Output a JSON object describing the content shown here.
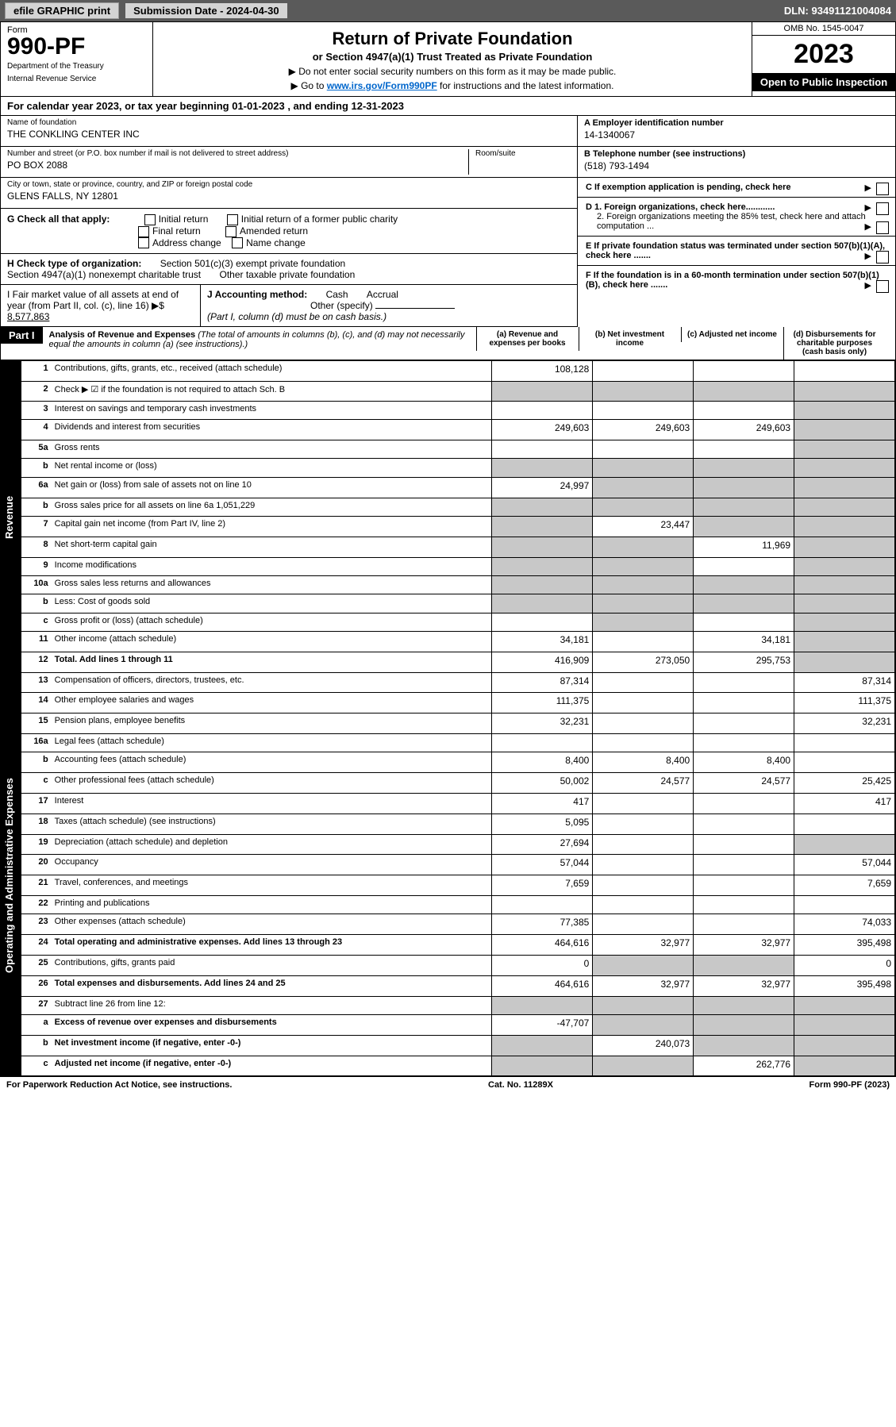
{
  "topbar": {
    "efile_label": "efile GRAPHIC print",
    "submission": "Submission Date - 2024-04-30",
    "dln": "DLN: 93491121004084"
  },
  "header": {
    "form_label": "Form",
    "form_number": "990-PF",
    "dept1": "Department of the Treasury",
    "dept2": "Internal Revenue Service",
    "title": "Return of Private Foundation",
    "subtitle": "or Section 4947(a)(1) Trust Treated as Private Foundation",
    "note1": "▶ Do not enter social security numbers on this form as it may be made public.",
    "note2_pre": "▶ Go to ",
    "note2_link": "www.irs.gov/Form990PF",
    "note2_post": " for instructions and the latest information.",
    "omb": "OMB No. 1545-0047",
    "year": "2023",
    "inspection": "Open to Public Inspection"
  },
  "calyear": "For calendar year 2023, or tax year beginning 01-01-2023                              , and ending 12-31-2023",
  "foundation": {
    "name_label": "Name of foundation",
    "name": "THE CONKLING CENTER INC",
    "addr_label": "Number and street (or P.O. box number if mail is not delivered to street address)",
    "addr": "PO BOX 2088",
    "room_label": "Room/suite",
    "city_label": "City or town, state or province, country, and ZIP or foreign postal code",
    "city": "GLENS FALLS, NY  12801",
    "ein_label": "A Employer identification number",
    "ein": "14-1340067",
    "phone_label": "B Telephone number (see instructions)",
    "phone": "(518) 793-1494",
    "c": "C If exemption application is pending, check here",
    "d1": "D 1. Foreign organizations, check here............",
    "d2": "2. Foreign organizations meeting the 85% test, check here and attach computation ...",
    "e": "E If private foundation status was terminated under section 507(b)(1)(A), check here .......",
    "f": "F If the foundation is in a 60-month termination under section 507(b)(1)(B), check here .......",
    "g_label": "G Check all that apply:",
    "g_opts": [
      "Initial return",
      "Initial return of a former public charity",
      "Final return",
      "Amended return",
      "Address change",
      "Name change"
    ],
    "h_label": "H Check type of organization:",
    "h1": "Section 501(c)(3) exempt private foundation",
    "h2": "Section 4947(a)(1) nonexempt charitable trust",
    "h3": "Other taxable private foundation",
    "i_label": "I Fair market value of all assets at end of year (from Part II, col. (c), line 16) ▶$",
    "i_val": "8,577,863",
    "j_label": "J Accounting method:",
    "j_cash": "Cash",
    "j_accrual": "Accrual",
    "j_other": "Other (specify)",
    "j_note": "(Part I, column (d) must be on cash basis.)"
  },
  "part1": {
    "label": "Part I",
    "title": "Analysis of Revenue and Expenses",
    "title_note": "(The total of amounts in columns (b), (c), and (d) may not necessarily equal the amounts in column (a) (see instructions).)",
    "col_a": "(a) Revenue and expenses per books",
    "col_b": "(b) Net investment income",
    "col_c": "(c) Adjusted net income",
    "col_d": "(d) Disbursements for charitable purposes (cash basis only)"
  },
  "sidelabels": {
    "revenue": "Revenue",
    "expenses": "Operating and Administrative Expenses"
  },
  "rows": [
    {
      "ln": "1",
      "desc": "Contributions, gifts, grants, etc., received (attach schedule)",
      "a": "108,128",
      "b": "",
      "c": "",
      "d": ""
    },
    {
      "ln": "2",
      "desc": "Check ▶ ☑ if the foundation is not required to attach Sch. B",
      "a": "grey",
      "b": "grey",
      "c": "grey",
      "d": "grey"
    },
    {
      "ln": "3",
      "desc": "Interest on savings and temporary cash investments",
      "a": "",
      "b": "",
      "c": "",
      "d": "grey"
    },
    {
      "ln": "4",
      "desc": "Dividends and interest from securities",
      "a": "249,603",
      "b": "249,603",
      "c": "249,603",
      "d": "grey"
    },
    {
      "ln": "5a",
      "desc": "Gross rents",
      "a": "",
      "b": "",
      "c": "",
      "d": "grey"
    },
    {
      "ln": "b",
      "desc": "Net rental income or (loss)",
      "a": "grey",
      "b": "grey",
      "c": "grey",
      "d": "grey"
    },
    {
      "ln": "6a",
      "desc": "Net gain or (loss) from sale of assets not on line 10",
      "a": "24,997",
      "b": "grey",
      "c": "grey",
      "d": "grey"
    },
    {
      "ln": "b",
      "desc": "Gross sales price for all assets on line 6a     1,051,229",
      "a": "grey",
      "b": "grey",
      "c": "grey",
      "d": "grey"
    },
    {
      "ln": "7",
      "desc": "Capital gain net income (from Part IV, line 2)",
      "a": "grey",
      "b": "23,447",
      "c": "grey",
      "d": "grey"
    },
    {
      "ln": "8",
      "desc": "Net short-term capital gain",
      "a": "grey",
      "b": "grey",
      "c": "11,969",
      "d": "grey"
    },
    {
      "ln": "9",
      "desc": "Income modifications",
      "a": "grey",
      "b": "grey",
      "c": "",
      "d": "grey"
    },
    {
      "ln": "10a",
      "desc": "Gross sales less returns and allowances",
      "a": "grey",
      "b": "grey",
      "c": "grey",
      "d": "grey"
    },
    {
      "ln": "b",
      "desc": "Less: Cost of goods sold",
      "a": "grey",
      "b": "grey",
      "c": "grey",
      "d": "grey"
    },
    {
      "ln": "c",
      "desc": "Gross profit or (loss) (attach schedule)",
      "a": "",
      "b": "grey",
      "c": "",
      "d": "grey"
    },
    {
      "ln": "11",
      "desc": "Other income (attach schedule)",
      "a": "34,181",
      "b": "",
      "c": "34,181",
      "d": "grey"
    },
    {
      "ln": "12",
      "desc": "Total. Add lines 1 through 11",
      "bold": true,
      "a": "416,909",
      "b": "273,050",
      "c": "295,753",
      "d": "grey"
    },
    {
      "ln": "13",
      "desc": "Compensation of officers, directors, trustees, etc.",
      "a": "87,314",
      "b": "",
      "c": "",
      "d": "87,314"
    },
    {
      "ln": "14",
      "desc": "Other employee salaries and wages",
      "a": "111,375",
      "b": "",
      "c": "",
      "d": "111,375"
    },
    {
      "ln": "15",
      "desc": "Pension plans, employee benefits",
      "a": "32,231",
      "b": "",
      "c": "",
      "d": "32,231"
    },
    {
      "ln": "16a",
      "desc": "Legal fees (attach schedule)",
      "a": "",
      "b": "",
      "c": "",
      "d": ""
    },
    {
      "ln": "b",
      "desc": "Accounting fees (attach schedule)",
      "a": "8,400",
      "b": "8,400",
      "c": "8,400",
      "d": ""
    },
    {
      "ln": "c",
      "desc": "Other professional fees (attach schedule)",
      "a": "50,002",
      "b": "24,577",
      "c": "24,577",
      "d": "25,425"
    },
    {
      "ln": "17",
      "desc": "Interest",
      "a": "417",
      "b": "",
      "c": "",
      "d": "417"
    },
    {
      "ln": "18",
      "desc": "Taxes (attach schedule) (see instructions)",
      "a": "5,095",
      "b": "",
      "c": "",
      "d": ""
    },
    {
      "ln": "19",
      "desc": "Depreciation (attach schedule) and depletion",
      "a": "27,694",
      "b": "",
      "c": "",
      "d": "grey"
    },
    {
      "ln": "20",
      "desc": "Occupancy",
      "a": "57,044",
      "b": "",
      "c": "",
      "d": "57,044"
    },
    {
      "ln": "21",
      "desc": "Travel, conferences, and meetings",
      "a": "7,659",
      "b": "",
      "c": "",
      "d": "7,659"
    },
    {
      "ln": "22",
      "desc": "Printing and publications",
      "a": "",
      "b": "",
      "c": "",
      "d": ""
    },
    {
      "ln": "23",
      "desc": "Other expenses (attach schedule)",
      "a": "77,385",
      "b": "",
      "c": "",
      "d": "74,033"
    },
    {
      "ln": "24",
      "desc": "Total operating and administrative expenses. Add lines 13 through 23",
      "bold": true,
      "a": "464,616",
      "b": "32,977",
      "c": "32,977",
      "d": "395,498"
    },
    {
      "ln": "25",
      "desc": "Contributions, gifts, grants paid",
      "a": "0",
      "b": "grey",
      "c": "grey",
      "d": "0"
    },
    {
      "ln": "26",
      "desc": "Total expenses and disbursements. Add lines 24 and 25",
      "bold": true,
      "a": "464,616",
      "b": "32,977",
      "c": "32,977",
      "d": "395,498"
    },
    {
      "ln": "27",
      "desc": "Subtract line 26 from line 12:",
      "a": "grey",
      "b": "grey",
      "c": "grey",
      "d": "grey"
    },
    {
      "ln": "a",
      "desc": "Excess of revenue over expenses and disbursements",
      "bold": true,
      "a": "-47,707",
      "b": "grey",
      "c": "grey",
      "d": "grey"
    },
    {
      "ln": "b",
      "desc": "Net investment income (if negative, enter -0-)",
      "bold": true,
      "a": "grey",
      "b": "240,073",
      "c": "grey",
      "d": "grey"
    },
    {
      "ln": "c",
      "desc": "Adjusted net income (if negative, enter -0-)",
      "bold": true,
      "a": "grey",
      "b": "grey",
      "c": "262,776",
      "d": "grey"
    }
  ],
  "footer": {
    "left": "For Paperwork Reduction Act Notice, see instructions.",
    "mid": "Cat. No. 11289X",
    "right": "Form 990-PF (2023)"
  }
}
